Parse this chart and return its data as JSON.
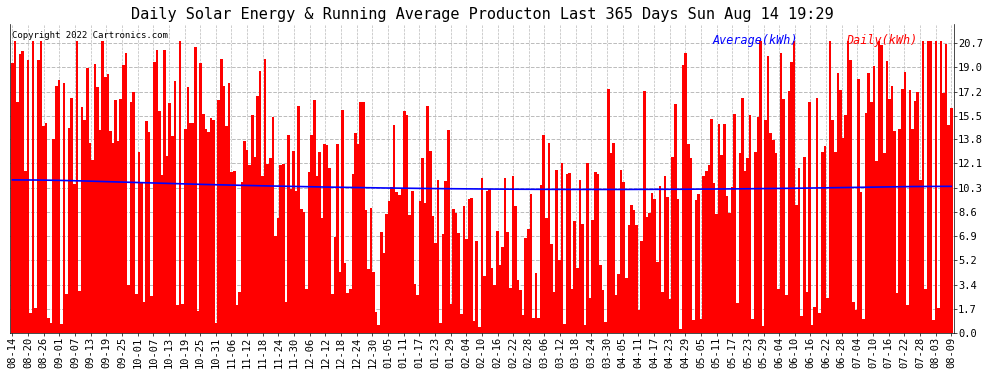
{
  "title": "Daily Solar Energy & Running Average Producton Last 365 Days Sun Aug 14 19:29",
  "copyright": "Copyright 2022 Cartronics.com",
  "legend_avg": "Average(kWh)",
  "legend_daily": "Daily(kWh)",
  "yticks": [
    0.0,
    1.7,
    3.4,
    5.2,
    6.9,
    8.6,
    10.3,
    12.1,
    13.8,
    15.5,
    17.2,
    19.0,
    20.7
  ],
  "ymax": 22.0,
  "ymin": 0.0,
  "bar_color": "#ff0000",
  "avg_color": "#0000ff",
  "bg_color": "#ffffff",
  "grid_color": "#bbbbbb",
  "title_fontsize": 11,
  "tick_fontsize": 7.5,
  "n_bars": 365,
  "xtick_labels": [
    "08-14",
    "08-20",
    "08-26",
    "09-01",
    "09-07",
    "09-13",
    "09-19",
    "09-25",
    "10-01",
    "10-07",
    "10-13",
    "10-19",
    "10-25",
    "10-31",
    "11-06",
    "11-12",
    "11-18",
    "11-24",
    "11-30",
    "12-06",
    "12-12",
    "12-18",
    "12-24",
    "12-30",
    "01-05",
    "01-11",
    "01-17",
    "01-23",
    "01-29",
    "02-04",
    "02-10",
    "02-16",
    "02-22",
    "02-28",
    "03-06",
    "03-12",
    "03-18",
    "03-24",
    "03-30",
    "04-05",
    "04-11",
    "04-17",
    "04-23",
    "04-29",
    "05-05",
    "05-11",
    "05-17",
    "05-23",
    "05-29",
    "06-04",
    "06-10",
    "06-16",
    "06-22",
    "06-28",
    "07-04",
    "07-10",
    "07-16",
    "07-22",
    "07-28",
    "08-03",
    "08-09"
  ]
}
